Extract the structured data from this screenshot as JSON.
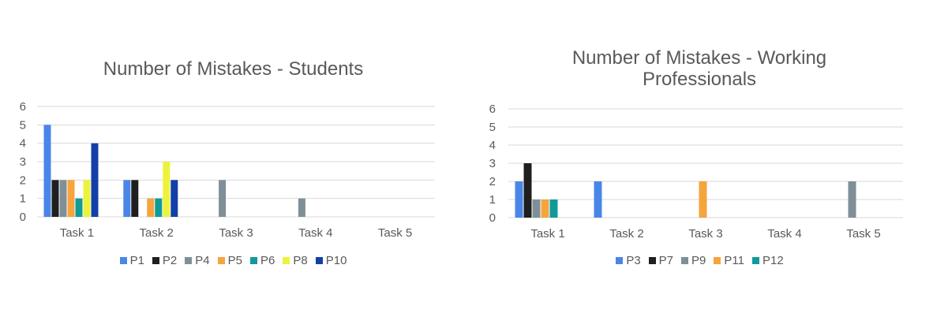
{
  "chart_data": [
    {
      "type": "bar",
      "title_lines": [
        "Number of Mistakes - Students"
      ],
      "categories": [
        "Task 1",
        "Task 2",
        "Task 3",
        "Task 4",
        "Task 5"
      ],
      "ylim": [
        0,
        6
      ],
      "yticks": [
        "0",
        "1",
        "2",
        "3",
        "4",
        "5",
        "6"
      ],
      "grid": true,
      "legend": "bottom",
      "series": [
        {
          "name": "P1",
          "color": "#4a86e8",
          "values": [
            5,
            2,
            0,
            0,
            0
          ]
        },
        {
          "name": "P2",
          "color": "#1f1f1f",
          "values": [
            2,
            2,
            0,
            0,
            0
          ]
        },
        {
          "name": "P4",
          "color": "#7f8f98",
          "values": [
            2,
            0,
            2,
            1,
            0
          ]
        },
        {
          "name": "P5",
          "color": "#f6a43c",
          "values": [
            2,
            1,
            0,
            0,
            0
          ]
        },
        {
          "name": "P6",
          "color": "#109a9a",
          "values": [
            1,
            1,
            0,
            0,
            0
          ]
        },
        {
          "name": "P8",
          "color": "#ecf33d",
          "values": [
            2,
            3,
            0,
            0,
            0
          ]
        },
        {
          "name": "P10",
          "color": "#1240a8",
          "values": [
            4,
            2,
            0,
            0,
            0
          ]
        }
      ]
    },
    {
      "type": "bar",
      "title_lines": [
        "Number of Mistakes - Working",
        "Professionals"
      ],
      "categories": [
        "Task 1",
        "Task 2",
        "Task 3",
        "Task 4",
        "Task 5"
      ],
      "ylim": [
        0,
        6
      ],
      "yticks": [
        "0",
        "1",
        "2",
        "3",
        "4",
        "5",
        "6"
      ],
      "grid": true,
      "legend": "bottom",
      "series": [
        {
          "name": "P3",
          "color": "#4a86e8",
          "values": [
            2,
            2,
            0,
            0,
            0
          ]
        },
        {
          "name": "P7",
          "color": "#1f1f1f",
          "values": [
            3,
            0,
            0,
            0,
            0
          ]
        },
        {
          "name": "P9",
          "color": "#7f8f98",
          "values": [
            1,
            0,
            0,
            0,
            2
          ]
        },
        {
          "name": "P11",
          "color": "#f6a43c",
          "values": [
            1,
            0,
            2,
            0,
            0
          ]
        },
        {
          "name": "P12",
          "color": "#109a9a",
          "values": [
            1,
            0,
            0,
            0,
            0
          ]
        }
      ]
    }
  ]
}
